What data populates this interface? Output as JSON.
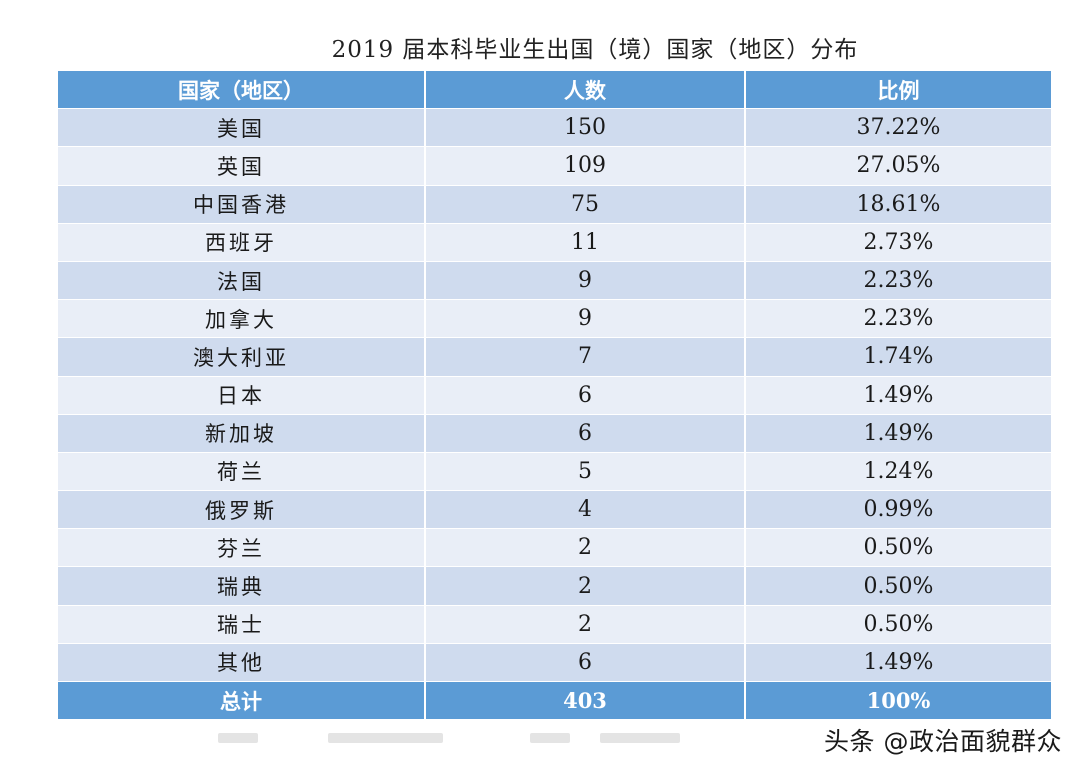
{
  "title": "2019 届本科毕业生出国（境）国家（地区）分布",
  "table": {
    "headers": [
      "国家（地区）",
      "人数",
      "比例"
    ],
    "rows": [
      {
        "country": "美国",
        "count": "150",
        "ratio": "37.22%"
      },
      {
        "country": "英国",
        "count": "109",
        "ratio": "27.05%"
      },
      {
        "country": "中国香港",
        "count": "75",
        "ratio": "18.61%"
      },
      {
        "country": "西班牙",
        "count": "11",
        "ratio": "2.73%"
      },
      {
        "country": "法国",
        "count": "9",
        "ratio": "2.23%"
      },
      {
        "country": "加拿大",
        "count": "9",
        "ratio": "2.23%"
      },
      {
        "country": "澳大利亚",
        "count": "7",
        "ratio": "1.74%"
      },
      {
        "country": "日本",
        "count": "6",
        "ratio": "1.49%"
      },
      {
        "country": "新加坡",
        "count": "6",
        "ratio": "1.49%"
      },
      {
        "country": "荷兰",
        "count": "5",
        "ratio": "1.24%"
      },
      {
        "country": "俄罗斯",
        "count": "4",
        "ratio": "0.99%"
      },
      {
        "country": "芬兰",
        "count": "2",
        "ratio": "0.50%"
      },
      {
        "country": "瑞典",
        "count": "2",
        "ratio": "0.50%"
      },
      {
        "country": "瑞士",
        "count": "2",
        "ratio": "0.50%"
      },
      {
        "country": "其他",
        "count": "6",
        "ratio": "1.49%"
      }
    ],
    "total": {
      "label": "总计",
      "count": "403",
      "ratio": "100%"
    }
  },
  "watermark": "头条 @政治面貌群众",
  "colors": {
    "header_bg": "#5b9bd5",
    "row_odd_bg": "#cfdbee",
    "row_even_bg": "#e9eef7"
  }
}
